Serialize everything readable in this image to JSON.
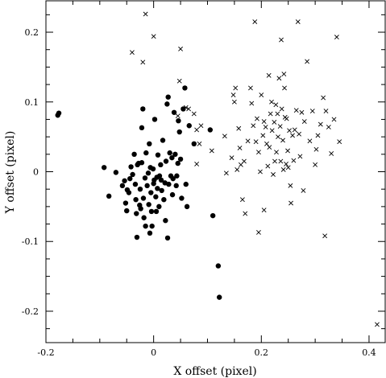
{
  "chart_data": {
    "type": "scatter",
    "xlabel": "X offset (pixel)",
    "ylabel": "Y offset (pixel)",
    "xlim": [
      -0.2,
      0.43
    ],
    "ylim": [
      -0.245,
      0.245
    ],
    "xticks": [
      -0.2,
      0,
      0.2,
      0.4
    ],
    "xtick_labels": [
      "-0.2",
      "0",
      "0.2",
      "0.4"
    ],
    "yticks": [
      -0.2,
      -0.1,
      0,
      0.1,
      0.2
    ],
    "ytick_labels": [
      "-0.2",
      "-0.1",
      "0",
      "0.1",
      "0.2"
    ],
    "grid": false,
    "series": [
      {
        "marker": "filled-circle",
        "points": [
          [
            -0.178,
            0.081
          ],
          [
            -0.176,
            0.084
          ],
          [
            -0.092,
            0.006
          ],
          [
            -0.083,
            -0.035
          ],
          [
            -0.07,
            -0.001
          ],
          [
            -0.058,
            -0.02
          ],
          [
            -0.054,
            -0.013
          ],
          [
            -0.052,
            -0.045
          ],
          [
            -0.05,
            -0.056
          ],
          [
            -0.049,
            -0.026
          ],
          [
            -0.046,
            -0.03
          ],
          [
            -0.044,
            -0.01
          ],
          [
            -0.042,
            0.007
          ],
          [
            -0.039,
            -0.004
          ],
          [
            -0.036,
            0.025
          ],
          [
            -0.034,
            -0.018
          ],
          [
            -0.033,
            -0.04
          ],
          [
            -0.032,
            -0.06
          ],
          [
            -0.031,
            -0.094
          ],
          [
            -0.03,
            0.01
          ],
          [
            -0.028,
            0.012
          ],
          [
            -0.026,
            -0.048
          ],
          [
            -0.025,
            -0.025
          ],
          [
            -0.024,
            -0.053
          ],
          [
            -0.022,
            0.063
          ],
          [
            -0.022,
            0.013
          ],
          [
            -0.02,
            0.09
          ],
          [
            -0.019,
            -0.038
          ],
          [
            -0.018,
            -0.066
          ],
          [
            -0.016,
            -0.009
          ],
          [
            -0.015,
            -0.078
          ],
          [
            -0.014,
            0.027
          ],
          [
            -0.012,
            -0.02
          ],
          [
            -0.01,
            -0.002
          ],
          [
            -0.009,
            -0.047
          ],
          [
            -0.008,
            0.04
          ],
          [
            -0.007,
            -0.088
          ],
          [
            -0.006,
            0.006
          ],
          [
            -0.005,
            -0.03
          ],
          [
            -0.004,
            -0.057
          ],
          [
            -0.003,
            -0.078
          ],
          [
            -0.001,
            0.004
          ],
          [
            0.0,
            -0.017
          ],
          [
            0.001,
            -0.012
          ],
          [
            0.002,
            0.075
          ],
          [
            0.004,
            -0.036
          ],
          [
            0.005,
            -0.057
          ],
          [
            0.006,
            -0.008
          ],
          [
            0.007,
            -0.024
          ],
          [
            0.008,
            0.024
          ],
          [
            0.01,
            -0.05
          ],
          [
            0.011,
            -0.006
          ],
          [
            0.013,
            0.01
          ],
          [
            0.014,
            -0.012
          ],
          [
            0.015,
            -0.027
          ],
          [
            0.017,
            0.045
          ],
          [
            0.019,
            -0.04
          ],
          [
            0.021,
            -0.016
          ],
          [
            0.022,
            -0.07
          ],
          [
            0.023,
            0.015
          ],
          [
            0.025,
            0.097
          ],
          [
            0.026,
            -0.095
          ],
          [
            0.027,
            0.107
          ],
          [
            0.028,
            -0.018
          ],
          [
            0.03,
            0.027
          ],
          [
            0.032,
            -0.006
          ],
          [
            0.034,
            0.02
          ],
          [
            0.035,
            -0.033
          ],
          [
            0.036,
            -0.01
          ],
          [
            0.038,
            0.085
          ],
          [
            0.04,
            0.025
          ],
          [
            0.042,
            -0.02
          ],
          [
            0.043,
            -0.006
          ],
          [
            0.045,
            0.012
          ],
          [
            0.046,
            0.073
          ],
          [
            0.048,
            0.057
          ],
          [
            0.05,
            0.018
          ],
          [
            0.052,
            -0.038
          ],
          [
            0.055,
            0.09
          ],
          [
            0.058,
            0.12
          ],
          [
            0.06,
            -0.018
          ],
          [
            0.062,
            -0.05
          ],
          [
            0.066,
            0.066
          ],
          [
            0.075,
            0.04
          ],
          [
            0.105,
            0.06
          ],
          [
            0.11,
            -0.063
          ],
          [
            0.12,
            -0.135
          ],
          [
            0.122,
            -0.18
          ]
        ]
      },
      {
        "marker": "cross",
        "points": [
          [
            -0.015,
            0.226
          ],
          [
            0.0,
            0.194
          ],
          [
            -0.04,
            0.171
          ],
          [
            -0.02,
            0.157
          ],
          [
            0.05,
            0.176
          ],
          [
            0.048,
            0.13
          ],
          [
            0.06,
            0.092
          ],
          [
            0.065,
            0.09
          ],
          [
            0.045,
            0.08
          ],
          [
            0.075,
            0.083
          ],
          [
            0.08,
            0.06
          ],
          [
            0.088,
            0.066
          ],
          [
            0.085,
            0.04
          ],
          [
            0.08,
            0.011
          ],
          [
            0.108,
            0.03
          ],
          [
            0.132,
            0.051
          ],
          [
            0.135,
            -0.002
          ],
          [
            0.145,
            0.02
          ],
          [
            0.148,
            0.11
          ],
          [
            0.152,
            0.12
          ],
          [
            0.15,
            0.1
          ],
          [
            0.155,
            0.003
          ],
          [
            0.158,
            0.062
          ],
          [
            0.16,
            0.034
          ],
          [
            0.162,
            0.01
          ],
          [
            0.165,
            -0.04
          ],
          [
            0.168,
            0.015
          ],
          [
            0.17,
            -0.06
          ],
          [
            0.175,
            0.044
          ],
          [
            0.18,
            0.12
          ],
          [
            0.182,
            0.098
          ],
          [
            0.185,
            0.066
          ],
          [
            0.188,
            0.215
          ],
          [
            0.19,
            0.043
          ],
          [
            0.192,
            0.076
          ],
          [
            0.195,
            0.028
          ],
          [
            0.195,
            -0.087
          ],
          [
            0.198,
            0.0
          ],
          [
            0.2,
            0.11
          ],
          [
            0.203,
            0.052
          ],
          [
            0.205,
            0.072
          ],
          [
            0.205,
            -0.055
          ],
          [
            0.208,
            0.064
          ],
          [
            0.21,
            0.04
          ],
          [
            0.212,
            0.008
          ],
          [
            0.214,
            0.138
          ],
          [
            0.215,
            0.035
          ],
          [
            0.217,
            0.083
          ],
          [
            0.219,
            0.1
          ],
          [
            0.22,
            0.059
          ],
          [
            0.222,
            -0.004
          ],
          [
            0.224,
            0.071
          ],
          [
            0.225,
            0.015
          ],
          [
            0.227,
            0.096
          ],
          [
            0.228,
            0.028
          ],
          [
            0.23,
            0.083
          ],
          [
            0.231,
            0.05
          ],
          [
            0.233,
            0.134
          ],
          [
            0.235,
            0.065
          ],
          [
            0.236,
            0.015
          ],
          [
            0.237,
            0.189
          ],
          [
            0.238,
            0.09
          ],
          [
            0.24,
            0.045
          ],
          [
            0.241,
            0.003
          ],
          [
            0.242,
            0.14
          ],
          [
            0.243,
            0.12
          ],
          [
            0.244,
            0.078
          ],
          [
            0.246,
            0.011
          ],
          [
            0.247,
            0.076
          ],
          [
            0.249,
            0.03
          ],
          [
            0.25,
            0.006
          ],
          [
            0.252,
            0.059
          ],
          [
            0.254,
            -0.02
          ],
          [
            0.255,
            -0.045
          ],
          [
            0.258,
            0.052
          ],
          [
            0.26,
            0.016
          ],
          [
            0.262,
            0.06
          ],
          [
            0.265,
            0.088
          ],
          [
            0.268,
            0.215
          ],
          [
            0.27,
            0.054
          ],
          [
            0.272,
            0.022
          ],
          [
            0.275,
            0.085
          ],
          [
            0.278,
            -0.027
          ],
          [
            0.28,
            0.072
          ],
          [
            0.285,
            0.158
          ],
          [
            0.29,
            0.044
          ],
          [
            0.295,
            0.087
          ],
          [
            0.3,
            0.01
          ],
          [
            0.302,
            0.032
          ],
          [
            0.305,
            0.052
          ],
          [
            0.31,
            0.068
          ],
          [
            0.315,
            0.106
          ],
          [
            0.318,
            -0.092
          ],
          [
            0.32,
            0.087
          ],
          [
            0.325,
            0.064
          ],
          [
            0.33,
            0.026
          ],
          [
            0.335,
            0.075
          ],
          [
            0.34,
            0.193
          ],
          [
            0.345,
            0.043
          ],
          [
            0.415,
            -0.219
          ]
        ]
      }
    ]
  }
}
